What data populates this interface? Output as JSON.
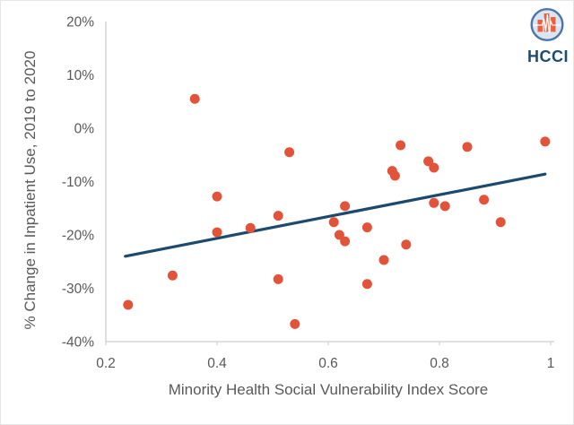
{
  "chart_data": {
    "type": "scatter",
    "title": "",
    "xlabel": "Minority Health Social Vulnerability Index Score",
    "ylabel": "% Change in Inpatient Use, 2019 to 2020",
    "xlim": [
      0.2,
      1.0
    ],
    "ylim": [
      -40,
      20
    ],
    "grid": false,
    "legend": false,
    "x_ticks": [
      0.2,
      0.4,
      0.6,
      0.8,
      1
    ],
    "x_tick_labels": [
      "0.2",
      "0.4",
      "0.6",
      "0.8",
      "1"
    ],
    "y_ticks": [
      20,
      10,
      0,
      -10,
      -20,
      -30,
      -40
    ],
    "y_tick_labels": [
      "20%",
      "10%",
      "0%",
      "-10%",
      "-20%",
      "-30%",
      "-40%"
    ],
    "points": [
      [
        0.24,
        -33.1
      ],
      [
        0.32,
        -27.6
      ],
      [
        0.36,
        5.5
      ],
      [
        0.4,
        -12.8
      ],
      [
        0.4,
        -19.5
      ],
      [
        0.46,
        -18.7
      ],
      [
        0.51,
        -16.4
      ],
      [
        0.51,
        -28.3
      ],
      [
        0.53,
        -4.5
      ],
      [
        0.54,
        -36.7
      ],
      [
        0.61,
        -17.6
      ],
      [
        0.62,
        -20.0
      ],
      [
        0.63,
        -14.6
      ],
      [
        0.63,
        -21.2
      ],
      [
        0.67,
        -18.6
      ],
      [
        0.67,
        -29.2
      ],
      [
        0.7,
        -24.7
      ],
      [
        0.715,
        -8.0
      ],
      [
        0.72,
        -8.9
      ],
      [
        0.73,
        -3.2
      ],
      [
        0.74,
        -21.8
      ],
      [
        0.78,
        -6.2
      ],
      [
        0.79,
        -7.4
      ],
      [
        0.79,
        -14.0
      ],
      [
        0.81,
        -14.6
      ],
      [
        0.85,
        -3.5
      ],
      [
        0.88,
        -13.4
      ],
      [
        0.91,
        -17.6
      ],
      [
        0.99,
        -2.5
      ]
    ],
    "trendline": {
      "x1": 0.235,
      "y1": -24.0,
      "x2": 0.99,
      "y2": -8.6
    },
    "colors": {
      "point": "#e3533a",
      "trend": "#1b4a6e",
      "axis": "#d6d6d6",
      "text": "#595959"
    }
  },
  "logo": {
    "text": "HCCI",
    "colors": {
      "circle_fill": "#dbe5f1",
      "circle_ring": "#4a76a8",
      "bars": "#ee5f3d",
      "pulse": "#ffffff",
      "text": "#1d4d6e"
    }
  }
}
